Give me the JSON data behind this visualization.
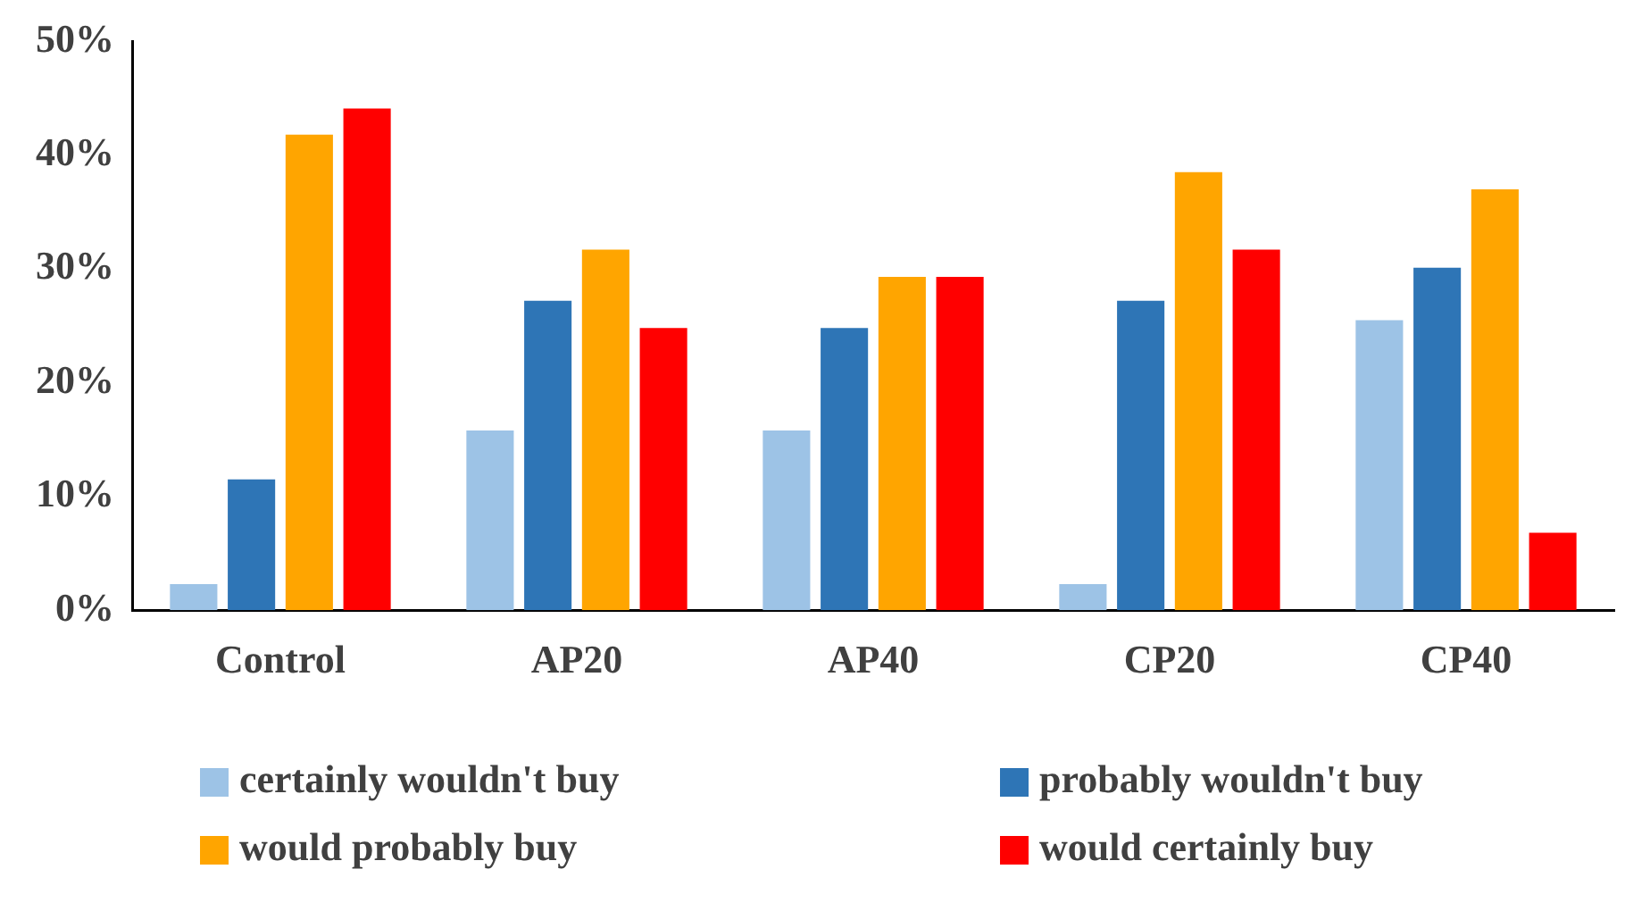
{
  "chart_data": {
    "type": "bar",
    "categories": [
      "Control",
      "AP20",
      "AP40",
      "CP20",
      "CP40"
    ],
    "series": [
      {
        "name": "certainly wouldn't buy",
        "color": "#9dc3e6",
        "values": [
          2.3,
          15.8,
          15.8,
          2.3,
          25.5
        ]
      },
      {
        "name": "probably wouldn't buy",
        "color": "#2e75b6",
        "values": [
          11.5,
          27.2,
          24.8,
          27.2,
          30.1
        ]
      },
      {
        "name": "would probably buy",
        "color": "#ffa500",
        "values": [
          41.8,
          31.7,
          29.3,
          38.5,
          37.0
        ]
      },
      {
        "name": "would certainly buy",
        "color": "#ff0000",
        "values": [
          44.1,
          24.8,
          29.3,
          31.7,
          6.8
        ]
      }
    ],
    "ylim": [
      0,
      50
    ],
    "yticks": [
      {
        "value": 0,
        "label": "0%"
      },
      {
        "value": 10,
        "label": "10%"
      },
      {
        "value": 20,
        "label": "20%"
      },
      {
        "value": 30,
        "label": "30%"
      },
      {
        "value": 40,
        "label": "40%"
      },
      {
        "value": 50,
        "label": "50%"
      }
    ],
    "grid": false,
    "legend": "bottom"
  }
}
